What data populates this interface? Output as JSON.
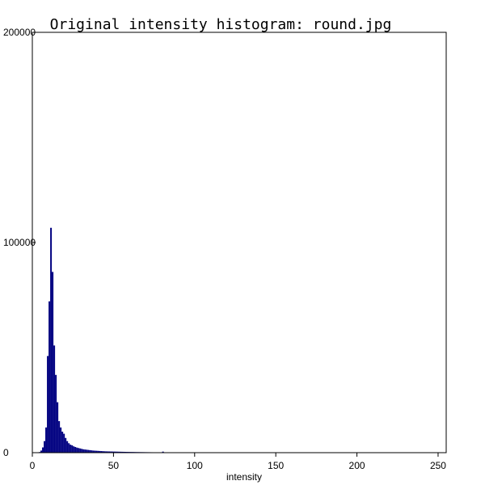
{
  "chart_data": {
    "type": "bar",
    "title": "Original intensity histogram: round.jpg",
    "xlabel": "intensity",
    "ylabel": "",
    "xlim": [
      0,
      255
    ],
    "ylim": [
      0,
      200000
    ],
    "x_ticks": [
      "0",
      "50",
      "100",
      "150",
      "200",
      "250"
    ],
    "y_ticks": [
      "0",
      "100000",
      "200000"
    ],
    "grid": false,
    "colors": {
      "bars": "#000080",
      "frame": "#000000",
      "background": "#ffffff"
    },
    "series": [
      {
        "x": [
          0,
          1,
          2,
          3,
          4,
          5,
          6,
          7,
          8,
          9,
          10,
          11,
          12,
          13,
          14,
          15,
          16,
          17,
          18,
          19,
          20,
          21,
          22,
          23,
          24,
          25,
          26,
          27,
          28,
          29,
          30,
          31,
          32,
          33,
          34,
          35,
          36,
          37,
          38,
          39,
          40,
          41,
          42,
          43,
          44,
          45,
          46,
          47,
          48,
          49,
          50,
          51,
          52,
          53,
          54,
          55,
          56,
          57,
          58,
          59,
          60,
          61,
          62,
          63,
          64,
          65,
          66,
          67,
          68,
          69,
          70,
          71,
          72,
          73,
          74,
          75,
          76,
          77,
          78,
          79,
          80,
          81,
          82,
          83,
          84,
          85,
          86,
          87,
          88,
          89,
          90,
          91,
          92,
          93,
          94,
          95,
          96,
          97,
          98,
          99,
          100
        ],
        "values": [
          0,
          0,
          0,
          0,
          300,
          1000,
          2500,
          5500,
          12000,
          46000,
          72000,
          107000,
          86000,
          51000,
          37000,
          24000,
          15000,
          12000,
          10000,
          9000,
          7000,
          5500,
          4500,
          3800,
          3500,
          3000,
          2700,
          2400,
          2200,
          2000,
          1800,
          1600,
          1500,
          1400,
          1300,
          1200,
          1100,
          1000,
          950,
          900,
          850,
          800,
          750,
          700,
          650,
          620,
          600,
          580,
          560,
          540,
          520,
          500,
          480,
          460,
          440,
          420,
          400,
          380,
          360,
          350,
          340,
          330,
          320,
          300,
          290,
          280,
          270,
          260,
          250,
          240,
          230,
          220,
          210,
          200,
          190,
          180,
          170,
          160,
          150,
          140,
          500,
          130,
          120,
          110,
          100,
          90,
          80,
          70,
          60,
          50,
          40,
          30,
          25,
          20,
          15,
          10,
          8,
          5,
          3,
          2,
          0
        ]
      }
    ]
  }
}
